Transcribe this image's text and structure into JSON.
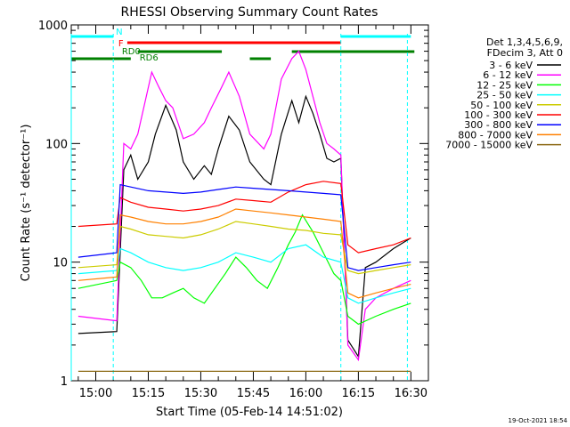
{
  "chart_data": {
    "type": "line",
    "title": "RHESSI Observing Summary Count Rates",
    "xlabel": "Start Time (05-Feb-14 14:51:02)",
    "ylabel": "Count Rate (s⁻¹ detector⁻¹)",
    "yscale": "log",
    "ylim": [
      1,
      1000
    ],
    "xlim_minutes": [
      -7,
      95
    ],
    "x_ticks": [
      "15:00",
      "15:15",
      "15:30",
      "15:45",
      "16:00",
      "16:15",
      "16:30"
    ],
    "x_tick_minutes": [
      0,
      15,
      30,
      45,
      60,
      75,
      90
    ],
    "y_ticks": [
      "1",
      "10",
      "100",
      "1000"
    ],
    "y_tick_values": [
      1,
      10,
      100,
      1000
    ],
    "legend_header": [
      "Det 1,3,4,5,6,9,",
      "FDecim 3, Att 0"
    ],
    "legend_placement": "right, outside plot",
    "timestamp": "19-Oct-2021 18:54",
    "series": [
      {
        "name": "3 - 6 keV",
        "color": "#000000",
        "x": [
          -5,
          6,
          8,
          10,
          12,
          15,
          17,
          20,
          23,
          25,
          28,
          31,
          33,
          35,
          38,
          41,
          44,
          48,
          50,
          53,
          56,
          58,
          60,
          62,
          64,
          66,
          68,
          70,
          72,
          75,
          77,
          80,
          85,
          90
        ],
        "y": [
          2.5,
          2.6,
          60,
          80,
          50,
          70,
          120,
          210,
          130,
          70,
          50,
          65,
          55,
          90,
          170,
          130,
          70,
          50,
          45,
          120,
          230,
          150,
          250,
          180,
          120,
          75,
          70,
          75,
          2.2,
          1.6,
          9,
          10,
          13,
          16
        ]
      },
      {
        "name": "6 - 12 keV",
        "color": "#ff00ff",
        "x": [
          -5,
          6,
          8,
          10,
          12,
          14,
          16,
          18,
          20,
          22,
          25,
          28,
          31,
          33,
          36,
          38,
          41,
          44,
          48,
          50,
          53,
          56,
          58,
          60,
          62,
          64,
          66,
          68,
          70,
          72,
          75,
          77,
          80,
          85,
          90
        ],
        "y": [
          3.5,
          3.2,
          100,
          90,
          120,
          220,
          400,
          300,
          230,
          200,
          110,
          120,
          150,
          200,
          300,
          400,
          250,
          120,
          90,
          120,
          350,
          520,
          600,
          420,
          250,
          150,
          100,
          90,
          80,
          2,
          1.5,
          4,
          5,
          6,
          7
        ]
      },
      {
        "name": "12 - 25 keV",
        "color": "#00ff00",
        "x": [
          -5,
          6,
          7,
          10,
          13,
          16,
          19,
          22,
          25,
          28,
          31,
          34,
          37,
          40,
          43,
          46,
          49,
          52,
          55,
          57,
          59,
          62,
          65,
          68,
          70,
          72,
          75,
          80,
          85,
          90
        ],
        "y": [
          6,
          7,
          10,
          9,
          7,
          5,
          5,
          5.5,
          6,
          5,
          4.5,
          6,
          8,
          11,
          9,
          7,
          6,
          9,
          14,
          18,
          25,
          18,
          12,
          8,
          7,
          3.5,
          3,
          3.5,
          4,
          4.5
        ]
      },
      {
        "name": "25 - 50 keV",
        "color": "#00ffff",
        "x": [
          -5,
          6,
          7,
          10,
          15,
          20,
          25,
          30,
          35,
          40,
          45,
          50,
          55,
          60,
          65,
          70,
          72,
          75,
          80,
          85,
          90
        ],
        "y": [
          8,
          8.5,
          13,
          12,
          10,
          9,
          8.5,
          9,
          10,
          12,
          11,
          10,
          13,
          14,
          11,
          10,
          5,
          4.5,
          5,
          5.5,
          6
        ]
      },
      {
        "name": "50 - 100 keV",
        "color": "#cccc00",
        "x": [
          -5,
          6,
          7,
          10,
          15,
          20,
          25,
          30,
          35,
          40,
          45,
          50,
          55,
          60,
          65,
          70,
          72,
          75,
          80,
          85,
          90
        ],
        "y": [
          9,
          9.5,
          20,
          19,
          17,
          16.5,
          16,
          17,
          19,
          22,
          21,
          20,
          19,
          18.5,
          17.5,
          17,
          8.5,
          8,
          8.5,
          9,
          9.5
        ]
      },
      {
        "name": "100 - 300 keV",
        "color": "#ff0000",
        "x": [
          -5,
          6,
          7,
          10,
          15,
          20,
          25,
          30,
          35,
          40,
          45,
          50,
          55,
          60,
          65,
          70,
          72,
          75,
          80,
          85,
          90
        ],
        "y": [
          20,
          21,
          35,
          32,
          29,
          28,
          27,
          28,
          30,
          34,
          33,
          32,
          39,
          45,
          48,
          46,
          14,
          12,
          13,
          14,
          16
        ]
      },
      {
        "name": "300 - 800 keV",
        "color": "#0000ff",
        "x": [
          -5,
          6,
          7,
          10,
          15,
          20,
          25,
          30,
          35,
          40,
          45,
          50,
          55,
          60,
          65,
          70,
          72,
          75,
          80,
          85,
          90
        ],
        "y": [
          11,
          12,
          45,
          43,
          40,
          39,
          38,
          39,
          41,
          43,
          42,
          41,
          40,
          39,
          38,
          37,
          9,
          8.5,
          9,
          9.5,
          10
        ]
      },
      {
        "name": "800 - 7000 keV",
        "color": "#ff8000",
        "x": [
          -5,
          6,
          7,
          10,
          15,
          20,
          25,
          30,
          35,
          40,
          45,
          50,
          55,
          60,
          65,
          70,
          72,
          75,
          80,
          85,
          90
        ],
        "y": [
          7,
          7.5,
          25,
          24,
          22,
          21,
          21,
          22,
          24,
          28,
          27,
          26,
          25,
          24,
          23,
          22,
          5.5,
          5,
          5.5,
          6,
          6.5
        ]
      },
      {
        "name": "7000 - 15000 keV",
        "color": "#8b6914",
        "x": [
          -5,
          90
        ],
        "y": [
          1.2,
          1.2
        ]
      }
    ],
    "annotations": [
      {
        "label": "N",
        "color": "#00ffff",
        "bars": [
          [
            -7,
            5
          ],
          [
            70,
            90
          ]
        ]
      },
      {
        "label": "F",
        "color": "#ff0000",
        "bars": [
          [
            9,
            70
          ]
        ]
      },
      {
        "label": "RD0",
        "color": "#008000",
        "bars": [
          [
            -7,
            10
          ],
          [
            44,
            50
          ]
        ]
      },
      {
        "label": "RD6",
        "color": "#008000",
        "bars": [
          [
            12,
            36
          ],
          [
            56,
            91
          ]
        ]
      }
    ]
  }
}
